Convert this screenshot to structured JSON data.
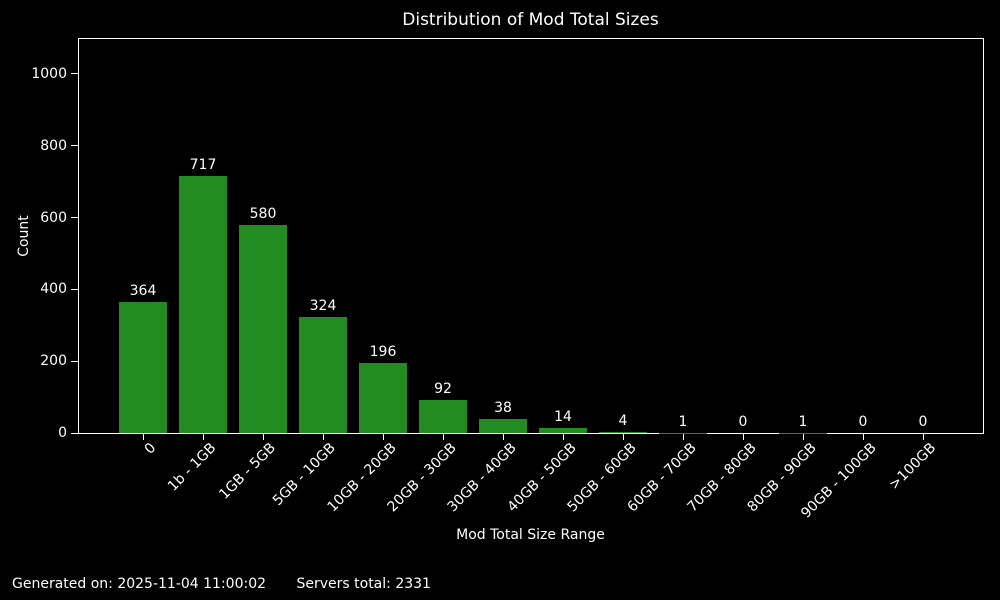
{
  "page": {
    "background_color": "#000000",
    "text_color": "#ffffff"
  },
  "chart_data": {
    "type": "bar",
    "title": "Distribution of Mod Total Sizes",
    "xlabel": "Mod Total Size Range",
    "ylabel": "Count",
    "categories": [
      "0",
      "1b - 1GB",
      "1GB - 5GB",
      "5GB - 10GB",
      "10GB - 20GB",
      "20GB - 30GB",
      "30GB - 40GB",
      "40GB - 50GB",
      "50GB - 60GB",
      "60GB - 70GB",
      "70GB - 80GB",
      "80GB - 90GB",
      "90GB - 100GB",
      ">100GB"
    ],
    "values": [
      364,
      717,
      580,
      324,
      196,
      92,
      38,
      14,
      4,
      1,
      0,
      1,
      0,
      0
    ],
    "bar_color": "#228B22",
    "yticks": [
      0,
      200,
      400,
      600,
      800,
      1000
    ],
    "ylim": [
      0,
      1100
    ],
    "xtick_rotation": 45,
    "grid": false,
    "legend": null
  },
  "footer": {
    "generated_label": "Generated on: 2025-11-04 11:00:02",
    "servers_total_label": "Servers total: 2331"
  }
}
